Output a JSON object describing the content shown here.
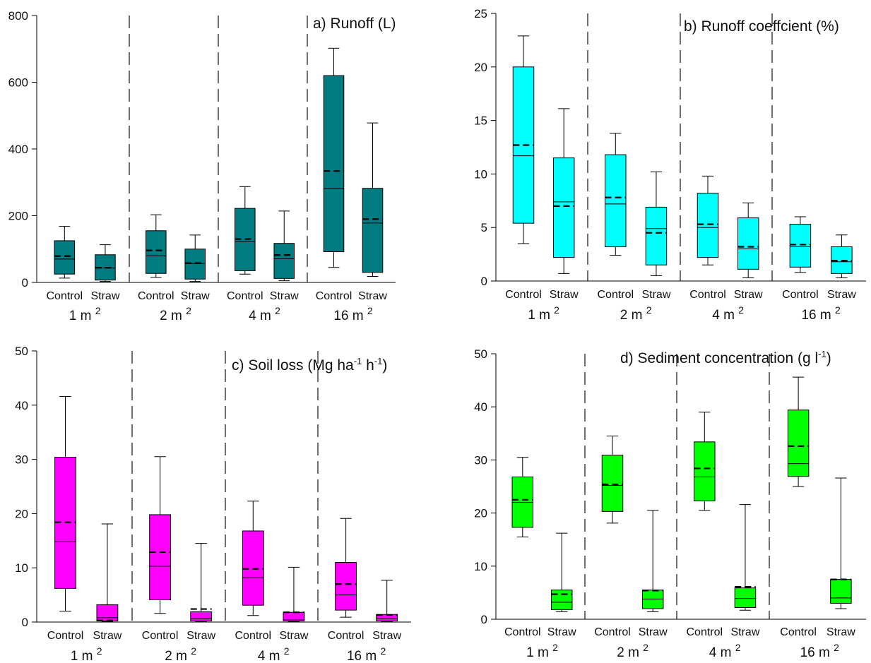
{
  "chart_data": [
    {
      "type": "boxplot",
      "title": "a) Runoff (L)",
      "title_sup": "",
      "title_tail": "",
      "ylim": [
        0,
        800
      ],
      "yticks": [
        0,
        200,
        400,
        600,
        800
      ],
      "box_color": "#007b7f",
      "groups": [
        "1 m",
        "2 m",
        "4 m",
        "16 m"
      ],
      "group_sup": "2",
      "categories": [
        "Control",
        "Straw"
      ],
      "boxes": [
        {
          "group": "1 m",
          "category": "Control",
          "min": 13,
          "q1": 25,
          "median": 70,
          "mean": 79,
          "q3": 125,
          "max": 168
        },
        {
          "group": "1 m",
          "category": "Straw",
          "min": 3,
          "q1": 7,
          "median": 43,
          "mean": 44,
          "q3": 83,
          "max": 113
        },
        {
          "group": "2 m",
          "category": "Control",
          "min": 15,
          "q1": 27,
          "median": 80,
          "mean": 96,
          "q3": 155,
          "max": 203
        },
        {
          "group": "2 m",
          "category": "Straw",
          "min": 3,
          "q1": 10,
          "median": 57,
          "mean": 58,
          "q3": 100,
          "max": 142
        },
        {
          "group": "4 m",
          "category": "Control",
          "min": 25,
          "q1": 35,
          "median": 122,
          "mean": 130,
          "q3": 222,
          "max": 287
        },
        {
          "group": "4 m",
          "category": "Straw",
          "min": 5,
          "q1": 12,
          "median": 71,
          "mean": 82,
          "q3": 117,
          "max": 214
        },
        {
          "group": "16 m",
          "category": "Control",
          "min": 45,
          "q1": 92,
          "median": 282,
          "mean": 334,
          "q3": 620,
          "max": 702
        },
        {
          "group": "16 m",
          "category": "Straw",
          "min": 18,
          "q1": 30,
          "median": 178,
          "mean": 190,
          "q3": 282,
          "max": 478
        }
      ]
    },
    {
      "type": "boxplot",
      "title": "b) Runoff coeffcient (%)",
      "title_sup": "",
      "title_tail": "",
      "ylim": [
        0,
        25
      ],
      "yticks": [
        0,
        5,
        10,
        15,
        20,
        25
      ],
      "box_color": "#00ffff",
      "groups": [
        "1 m",
        "2 m",
        "4 m",
        "16 m"
      ],
      "group_sup": "2",
      "categories": [
        "Control",
        "Straw"
      ],
      "boxes": [
        {
          "group": "1 m",
          "category": "Control",
          "min": 3.5,
          "q1": 5.4,
          "median": 11.7,
          "mean": 12.7,
          "q3": 20.0,
          "max": 22.9
        },
        {
          "group": "1 m",
          "category": "Straw",
          "min": 0.7,
          "q1": 2.2,
          "median": 7.4,
          "mean": 7.0,
          "q3": 11.5,
          "max": 16.1
        },
        {
          "group": "2 m",
          "category": "Control",
          "min": 2.4,
          "q1": 3.2,
          "median": 7.2,
          "mean": 7.8,
          "q3": 11.8,
          "max": 13.8
        },
        {
          "group": "2 m",
          "category": "Straw",
          "min": 0.5,
          "q1": 1.5,
          "median": 4.9,
          "mean": 4.5,
          "q3": 6.9,
          "max": 10.2
        },
        {
          "group": "4 m",
          "category": "Control",
          "min": 1.5,
          "q1": 2.2,
          "median": 5.0,
          "mean": 5.3,
          "q3": 8.2,
          "max": 9.8
        },
        {
          "group": "4 m",
          "category": "Straw",
          "min": 0.3,
          "q1": 1.1,
          "median": 3.0,
          "mean": 3.2,
          "q3": 5.9,
          "max": 7.3
        },
        {
          "group": "16 m",
          "category": "Control",
          "min": 0.8,
          "q1": 1.3,
          "median": 3.2,
          "mean": 3.4,
          "q3": 5.3,
          "max": 6.0
        },
        {
          "group": "16 m",
          "category": "Straw",
          "min": 0.3,
          "q1": 0.7,
          "median": 1.8,
          "mean": 1.9,
          "q3": 3.2,
          "max": 4.3
        }
      ]
    },
    {
      "type": "boxplot",
      "title": "c) Soil loss (Mg ha",
      "title_sup": "-1",
      "title_tail": " h",
      "title_sup2": "-1",
      "title_close": ")",
      "ylim": [
        0,
        50
      ],
      "yticks": [
        0,
        10,
        20,
        30,
        40,
        50
      ],
      "box_color": "#ff00ff",
      "groups": [
        "1 m",
        "2 m",
        "4 m",
        "16 m"
      ],
      "group_sup": "2",
      "categories": [
        "Control",
        "Straw"
      ],
      "boxes": [
        {
          "group": "1 m",
          "category": "Control",
          "min": 2.0,
          "q1": 6.2,
          "median": 14.8,
          "mean": 18.4,
          "q3": 30.4,
          "max": 41.6
        },
        {
          "group": "1 m",
          "category": "Straw",
          "min": 0.1,
          "q1": 0.2,
          "median": 0.8,
          "mean": 0.3,
          "q3": 3.2,
          "max": 18.1
        },
        {
          "group": "2 m",
          "category": "Control",
          "min": 1.6,
          "q1": 4.1,
          "median": 10.3,
          "mean": 12.9,
          "q3": 19.8,
          "max": 30.5
        },
        {
          "group": "2 m",
          "category": "Straw",
          "min": 0.1,
          "q1": 0.2,
          "median": 0.6,
          "mean": 2.4,
          "q3": 1.9,
          "max": 14.5
        },
        {
          "group": "4 m",
          "category": "Control",
          "min": 1.2,
          "q1": 3.1,
          "median": 8.2,
          "mean": 9.8,
          "q3": 16.8,
          "max": 22.3
        },
        {
          "group": "4 m",
          "category": "Straw",
          "min": 0.1,
          "q1": 0.2,
          "median": 0.4,
          "mean": 1.8,
          "q3": 1.8,
          "max": 10.1
        },
        {
          "group": "16 m",
          "category": "Control",
          "min": 0.9,
          "q1": 2.2,
          "median": 5.0,
          "mean": 7.0,
          "q3": 11.0,
          "max": 19.1
        },
        {
          "group": "16 m",
          "category": "Straw",
          "min": 0.1,
          "q1": 0.2,
          "median": 0.6,
          "mean": 1.3,
          "q3": 1.4,
          "max": 7.7
        }
      ]
    },
    {
      "type": "boxplot",
      "title": "d) Sediment concentration (g l",
      "title_sup": "-1",
      "title_tail": ")",
      "ylim": [
        0,
        50
      ],
      "yticks": [
        0,
        10,
        20,
        30,
        40,
        50
      ],
      "box_color": "#00ff00",
      "groups": [
        "1 m",
        "2 m",
        "4 m",
        "16 m"
      ],
      "group_sup": "2",
      "categories": [
        "Control",
        "Straw"
      ],
      "boxes": [
        {
          "group": "1 m",
          "category": "Control",
          "min": 15.5,
          "q1": 17.3,
          "median": 22.0,
          "mean": 22.5,
          "q3": 26.8,
          "max": 30.5
        },
        {
          "group": "1 m",
          "category": "Straw",
          "min": 1.4,
          "q1": 1.8,
          "median": 3.2,
          "mean": 4.7,
          "q3": 5.5,
          "max": 16.2
        },
        {
          "group": "2 m",
          "category": "Control",
          "min": 18.1,
          "q1": 20.3,
          "median": 25.2,
          "mean": 25.4,
          "q3": 30.9,
          "max": 34.5
        },
        {
          "group": "2 m",
          "category": "Straw",
          "min": 1.4,
          "q1": 2.0,
          "median": 3.8,
          "mean": 5.4,
          "q3": 5.5,
          "max": 20.5
        },
        {
          "group": "4 m",
          "category": "Control",
          "min": 20.5,
          "q1": 22.3,
          "median": 26.8,
          "mean": 28.4,
          "q3": 33.4,
          "max": 39.0
        },
        {
          "group": "4 m",
          "category": "Straw",
          "min": 1.7,
          "q1": 2.2,
          "median": 3.9,
          "mean": 6.1,
          "q3": 5.9,
          "max": 21.6
        },
        {
          "group": "16 m",
          "category": "Control",
          "min": 25.0,
          "q1": 26.9,
          "median": 29.3,
          "mean": 32.6,
          "q3": 39.4,
          "max": 45.6
        },
        {
          "group": "16 m",
          "category": "Straw",
          "min": 2.0,
          "q1": 3.0,
          "median": 4.0,
          "mean": 7.5,
          "q3": 7.5,
          "max": 26.6
        }
      ]
    }
  ]
}
